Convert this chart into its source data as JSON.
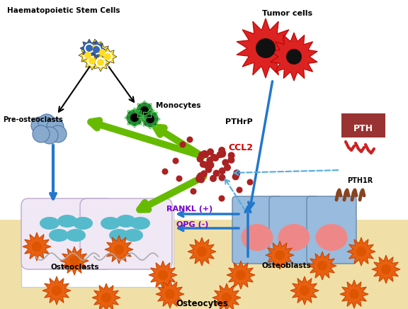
{
  "labels": {
    "haematopoietic": "Haematopoietic Stem Cells",
    "tumor": "Tumor cells",
    "pre_osteoclasts": "Pre-osteoclasts",
    "monocytes": "Monocytes",
    "pthrp": "PTHrP",
    "pth": "PTH",
    "ccl2": "CCL2",
    "osteoclasts": "Osteoclasts",
    "osteoblasts": "Osteoblasts",
    "pth1r": "PTH1R",
    "rankl": "RANKL (+)",
    "opg": "OPG (-)",
    "osteocytes": "Osteocytes"
  },
  "colors": {
    "blue_arrow": "#2277cc",
    "green_arrow": "#66bb00",
    "dashed_arrow": "#55aadd",
    "ccl2_dots": "#aa2222",
    "osteocyte_fill": "#e86010",
    "osteocyte_edge": "#cc4400",
    "osteoclast_bg": "#f0e8f5",
    "osteoclast_oval": "#55bbcc",
    "osteoblast_bg": "#99bbdd",
    "osteoblast_nucleus": "#ee8888",
    "rankl_color": "#7700cc",
    "opg_color": "#7700cc",
    "ccl2_label": "#cc0000",
    "pth_box": "#993333",
    "bone_color": "#f0e0a8",
    "white_bg": "#ffffff",
    "monocyte_green": "#228833",
    "pre_osteo_blue": "#88aace",
    "pth_red": "#cc2222",
    "receptor_brown": "#884422"
  }
}
